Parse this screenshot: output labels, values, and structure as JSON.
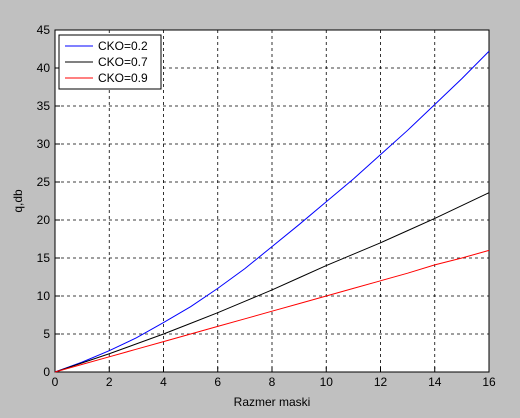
{
  "chart_data": {
    "type": "line",
    "xlabel": "Razmer maski",
    "ylabel": "q,db",
    "x": [
      0,
      1,
      2,
      3,
      4,
      5,
      6,
      7,
      8,
      9,
      10,
      11,
      12,
      13,
      14,
      15,
      16
    ],
    "series": [
      {
        "name": "CKO=0.2",
        "color": "#0000ff",
        "values": [
          0,
          1.3,
          2.8,
          4.5,
          6.5,
          8.6,
          11,
          13.6,
          16.5,
          19.4,
          22.4,
          25.4,
          28.6,
          31.8,
          35.2,
          38.6,
          42.2
        ]
      },
      {
        "name": "CKO=0.7",
        "color": "#000000",
        "values": [
          0,
          1.2,
          2.4,
          3.7,
          5,
          6.4,
          7.8,
          9.3,
          10.8,
          12.4,
          14,
          15.5,
          17,
          18.6,
          20.2,
          21.9,
          23.6
        ]
      },
      {
        "name": "CKO=0.9",
        "color": "#ff0000",
        "values": [
          0,
          1,
          2,
          3,
          4,
          5,
          6,
          7,
          8,
          9,
          10,
          11,
          12,
          13,
          14.1,
          15,
          16
        ]
      }
    ],
    "xlim": [
      0,
      16
    ],
    "xticks": [
      0,
      2,
      4,
      6,
      8,
      10,
      12,
      14,
      16
    ],
    "ylim": [
      0,
      45
    ],
    "yticks": [
      0,
      5,
      10,
      15,
      20,
      25,
      30,
      35,
      40,
      45
    ],
    "grid": true,
    "legend_position": "upper-left"
  }
}
